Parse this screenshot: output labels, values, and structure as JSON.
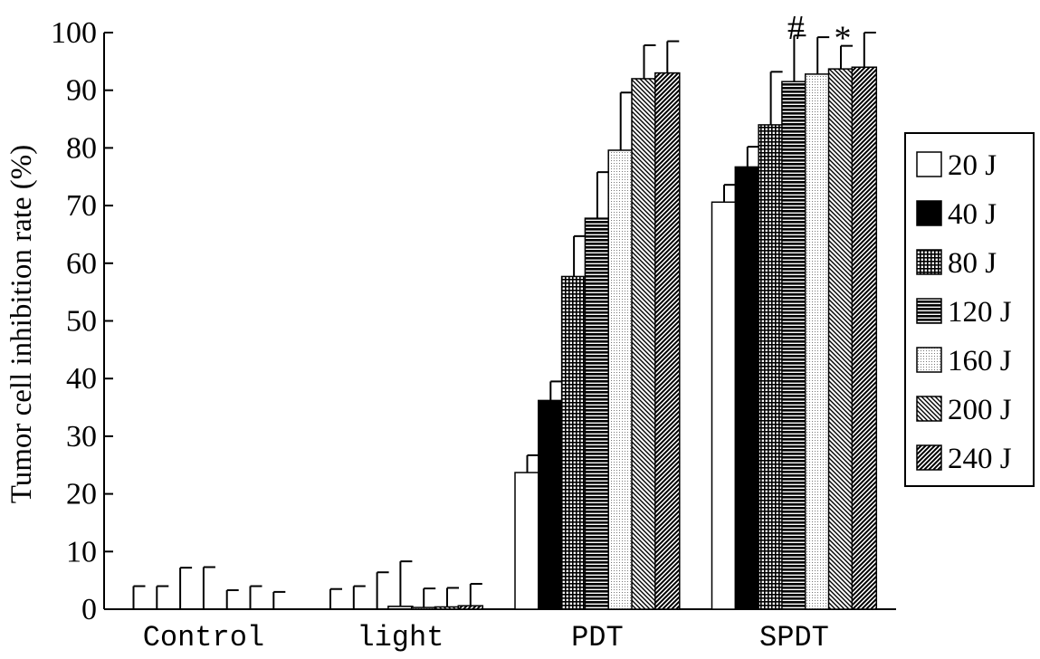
{
  "chart_data": {
    "type": "bar",
    "ylabel": "Tumor cell inhibition rate (%)",
    "xlabel": "",
    "ylim": [
      0,
      100
    ],
    "yticks": [
      0,
      10,
      20,
      30,
      40,
      50,
      60,
      70,
      80,
      90,
      100
    ],
    "grid": false,
    "legend_position": "right",
    "categories": [
      "Control",
      "light",
      "PDT",
      "SPDT"
    ],
    "series": [
      {
        "name": "20 J",
        "pattern": "white",
        "values": [
          0,
          0,
          23.7,
          70.6
        ],
        "errors": [
          4.0,
          3.5,
          3.0,
          3.0
        ]
      },
      {
        "name": "40 J",
        "pattern": "black",
        "values": [
          0,
          0,
          36.2,
          76.7
        ],
        "errors": [
          4.0,
          4.0,
          3.3,
          3.5
        ]
      },
      {
        "name": "80 J",
        "pattern": "grid",
        "values": [
          0,
          0,
          57.7,
          84.0
        ],
        "errors": [
          7.2,
          6.4,
          7.0,
          9.2
        ]
      },
      {
        "name": "120 J",
        "pattern": "hlines",
        "values": [
          0,
          0.5,
          67.8,
          91.5
        ],
        "errors": [
          7.3,
          7.8,
          8.0,
          8.0
        ]
      },
      {
        "name": "160 J",
        "pattern": "dots",
        "values": [
          0,
          0.3,
          79.6,
          92.8
        ],
        "errors": [
          3.3,
          3.3,
          10.0,
          6.4
        ]
      },
      {
        "name": "200 J",
        "pattern": "diag-down",
        "values": [
          0,
          0.4,
          92.0,
          93.7
        ],
        "errors": [
          4.0,
          3.3,
          5.8,
          4.0
        ]
      },
      {
        "name": "240 J",
        "pattern": "diag-up",
        "values": [
          0,
          0.6,
          93.0,
          94.0
        ],
        "errors": [
          3.0,
          3.8,
          5.5,
          6.0
        ]
      }
    ],
    "annotations": [
      {
        "text": "#",
        "category": "SPDT",
        "series": "120 J"
      },
      {
        "text": "*",
        "category": "SPDT",
        "series": "200 J"
      }
    ]
  }
}
